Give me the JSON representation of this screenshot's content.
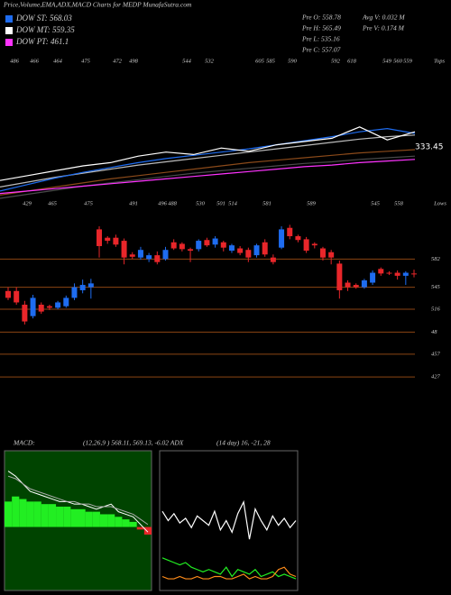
{
  "title": "Price,Volume,EMA,ADX,MACD Charts for MEDP MunafaSutra.com",
  "legend": [
    {
      "name": "DOW ST: 568.03",
      "color": "#1e6cf0"
    },
    {
      "name": "DOW MT: 559.35",
      "color": "#ffffff"
    },
    {
      "name": "DOW PT: 461.1",
      "color": "#ff33ff"
    }
  ],
  "stats": [
    "Pre O: 558.78",
    "Pre H: 565.49",
    "Pre L: 535.16",
    "Pre C: 557.07",
    "Avg V: 0.032 M",
    "Pre V: 0.174 M"
  ],
  "tops": [
    "486",
    "466",
    "464",
    "475",
    "472",
    "498",
    "544",
    "532",
    "605",
    "585",
    "590",
    "592",
    "618",
    "549",
    "560",
    "559",
    "Tops"
  ],
  "lows": [
    "429",
    "465",
    "475",
    "491",
    "496",
    "488",
    "530",
    "501",
    "514",
    "581",
    "589",
    "545",
    "558",
    "Lows"
  ],
  "chart_data": [
    {
      "type": "line",
      "ylim": [
        0,
        100
      ],
      "value_label": 333.45,
      "series": [
        {
          "color": "#4a4a4a",
          "values": [
            0,
            5,
            10,
            15,
            19,
            23,
            27,
            31,
            34,
            37,
            40,
            43,
            45,
            48,
            50,
            52
          ]
        },
        {
          "color": "#8b4a1a",
          "values": [
            4,
            9,
            14,
            19,
            24,
            28,
            32,
            36,
            40,
            44,
            47,
            50,
            53,
            56,
            58,
            60
          ]
        },
        {
          "color": "#ff33ff",
          "values": [
            6,
            9,
            12,
            15,
            18,
            21,
            24,
            27,
            30,
            33,
            36,
            39,
            41,
            44,
            46,
            48
          ]
        },
        {
          "color": "#bbbbbb",
          "values": [
            14,
            20,
            26,
            31,
            36,
            41,
            45,
            49,
            53,
            57,
            61,
            65,
            69,
            73,
            76,
            78
          ]
        },
        {
          "color": "#1e6cf0",
          "values": [
            9,
            17,
            25,
            32,
            38,
            44,
            49,
            53,
            57,
            61,
            66,
            71,
            76,
            82,
            86,
            80
          ]
        },
        {
          "color": "#ffffff",
          "values": [
            22,
            28,
            34,
            40,
            44,
            52,
            57,
            54,
            62,
            58,
            66,
            70,
            74,
            88,
            72,
            82
          ]
        }
      ]
    },
    {
      "type": "candlestick",
      "ylim": [
        413,
        644
      ],
      "up_color": "#1e6cf0",
      "down_color": "#e8262a",
      "level_color": "#8b4513",
      "yticks": [
        582,
        545,
        516,
        {
          "value": 486,
          "label": "48"
        },
        457,
        427
      ],
      "open": [
        540,
        540,
        522,
        507,
        522,
        520,
        518,
        520,
        531,
        541,
        545,
        621,
        610,
        610,
        606,
        588,
        584,
        582,
        587,
        582,
        604,
        602,
        595,
        595,
        607,
        601,
        604,
        593,
        596,
        594,
        587,
        604,
        584,
        597,
        623,
        612,
        608,
        602,
        596,
        591,
        576,
        551,
        548,
        545,
        551,
        569,
        564,
        564,
        560,
        563
      ],
      "high": [
        545,
        545,
        527,
        535,
        525,
        522,
        527,
        534,
        550,
        555,
        556,
        625,
        612,
        614,
        609,
        591,
        598,
        590,
        592,
        598,
        608,
        604,
        597,
        608,
        610,
        612,
        606,
        602,
        599,
        597,
        602,
        608,
        588,
        625,
        627,
        614,
        611,
        604,
        598,
        594,
        580,
        554,
        550,
        556,
        567,
        571,
        566,
        567,
        566,
        568
      ],
      "low": [
        528,
        522,
        496,
        504,
        510,
        515,
        516,
        518,
        528,
        537,
        530,
        584,
        602,
        598,
        575,
        582,
        581,
        578,
        575,
        580,
        594,
        592,
        578,
        592,
        598,
        597,
        592,
        590,
        587,
        578,
        584,
        585,
        575,
        595,
        608,
        604,
        590,
        596,
        580,
        575,
        530,
        540,
        543,
        543,
        548,
        560,
        561,
        555,
        548,
        558
      ],
      "close": [
        531,
        525,
        500,
        531,
        513,
        518,
        525,
        531,
        545,
        548,
        550,
        599,
        606,
        601,
        584,
        585,
        594,
        587,
        578,
        594,
        596,
        595,
        593,
        606,
        600,
        609,
        597,
        600,
        590,
        584,
        600,
        588,
        578,
        621,
        612,
        607,
        593,
        600,
        584,
        584,
        541,
        545,
        545,
        554,
        564,
        563,
        563,
        560,
        564,
        562
      ]
    },
    {
      "type": "macd",
      "ylim": [
        -25,
        30
      ],
      "hist_color": "#22ee22",
      "line_colors": [
        "#ffffff",
        "#aaaaaa"
      ],
      "histogram": [
        10,
        12,
        11,
        10,
        10,
        9,
        9,
        8,
        8,
        7,
        7,
        6,
        6,
        5,
        5,
        4,
        3,
        2,
        -1,
        -3
      ],
      "macd": [
        22,
        20,
        17,
        14,
        13,
        12,
        11,
        10,
        10,
        9,
        9,
        8,
        7,
        8,
        9,
        6,
        5,
        4,
        1,
        -2
      ],
      "signal": [
        20,
        19,
        17,
        15,
        14,
        13,
        12,
        11,
        10,
        10,
        9,
        9,
        8,
        8,
        8,
        7,
        6,
        5,
        3,
        1
      ],
      "label": "MACD:",
      "params": "(12,26,9 ) 568.11, 569.13, -6.02 ADX"
    },
    {
      "type": "adx",
      "ylim": [
        0,
        60
      ],
      "params": "(14 day) 16, -21, 28",
      "series": [
        {
          "color": "#ffffff",
          "values": [
            34,
            30,
            33,
            29,
            31,
            27,
            32,
            30,
            28,
            34,
            26,
            30,
            25,
            33,
            38,
            22,
            35,
            30,
            26,
            32,
            28,
            31,
            27,
            30
          ]
        },
        {
          "color": "#22ee22",
          "values": [
            14,
            13,
            12,
            11,
            12,
            10,
            9,
            8,
            9,
            8,
            7,
            10,
            6,
            9,
            8,
            7,
            9,
            6,
            7,
            8,
            6,
            7,
            6,
            5
          ]
        },
        {
          "color": "#ff8c1a",
          "values": [
            6,
            5,
            5,
            6,
            5,
            5,
            6,
            5,
            5,
            6,
            6,
            5,
            5,
            6,
            7,
            5,
            6,
            5,
            5,
            6,
            9,
            10,
            7,
            6
          ]
        }
      ]
    }
  ]
}
